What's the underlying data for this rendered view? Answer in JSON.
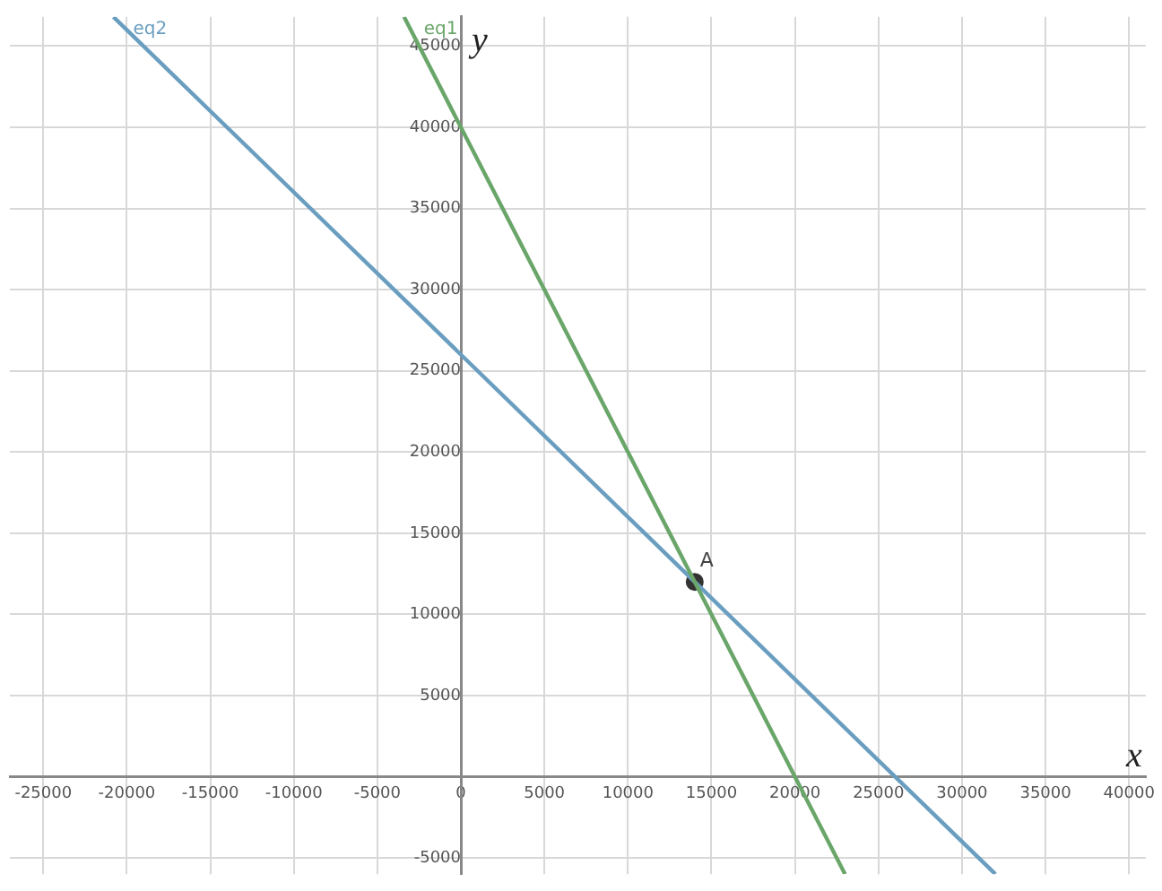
{
  "chart_data": {
    "type": "line",
    "xlabel": "x",
    "ylabel": "y",
    "xlim": [
      -27000,
      41000
    ],
    "ylim": [
      -6000,
      46800
    ],
    "xticks": [
      -25000,
      -20000,
      -15000,
      -10000,
      -5000,
      0,
      5000,
      10000,
      15000,
      20000,
      25000,
      30000,
      35000,
      40000
    ],
    "yticks": [
      -5000,
      {
        "value": 0,
        "label": null
      },
      5000,
      10000,
      15000,
      20000,
      25000,
      30000,
      35000,
      40000,
      45000
    ],
    "grid": true,
    "marker": "none",
    "line_style": "solid",
    "series": [
      {
        "name": "eq1",
        "color": "#6aa66a",
        "x": [
          -3400,
          23000
        ],
        "values": [
          46800,
          -6000
        ]
      },
      {
        "name": "eq2",
        "color": "#6a9ec0",
        "x": [
          -20800,
          32000
        ],
        "values": [
          46800,
          -6000
        ]
      },
      {
        "type": "scatter",
        "color": "#333333",
        "x": [
          14000
        ],
        "values": [
          12000
        ],
        "marker": "circle"
      }
    ],
    "annotations": [
      {
        "text": "A",
        "x": 14000,
        "y": 12000
      }
    ]
  }
}
